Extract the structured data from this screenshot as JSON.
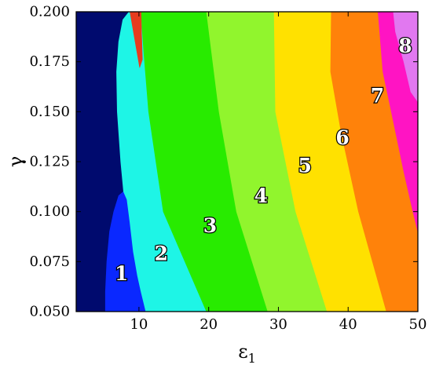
{
  "chart_data": {
    "type": "heatmap",
    "title": "",
    "xlabel": "ε",
    "xlabel_subscript": "1",
    "ylabel": "γ",
    "xlim": [
      1,
      50
    ],
    "ylim": [
      0.05,
      0.2
    ],
    "x_ticks": [
      10,
      20,
      30,
      40,
      50
    ],
    "x_tick_labels": [
      "10",
      "20",
      "30",
      "40",
      "50"
    ],
    "y_ticks": [
      0.05,
      0.075,
      0.1,
      0.125,
      0.15,
      0.175,
      0.2
    ],
    "y_tick_labels": [
      "0.050",
      "0.075",
      "0.100",
      "0.125",
      "0.150",
      "0.175",
      "0.200"
    ],
    "grid": false,
    "legend": "none",
    "background_color": "#000a6e",
    "regions": [
      {
        "label": "1",
        "color": "#0a28ff",
        "label_at": [
          7.5,
          0.069
        ],
        "boundary": [
          [
            5.2,
            0.05
          ],
          [
            5.2,
            0.06
          ],
          [
            5.4,
            0.075
          ],
          [
            5.8,
            0.09
          ],
          [
            6.4,
            0.1
          ],
          [
            7.1,
            0.108
          ],
          [
            7.8,
            0.11
          ],
          [
            8.3,
            0.106
          ],
          [
            8.7,
            0.095
          ],
          [
            9.2,
            0.08
          ],
          [
            9.8,
            0.068
          ],
          [
            10.3,
            0.06
          ],
          [
            11,
            0.05
          ]
        ]
      },
      {
        "label": "2",
        "color": "#1ef5e6",
        "label_at": [
          13.2,
          0.079
        ],
        "boundary": [
          [
            11,
            0.05
          ],
          [
            10.3,
            0.06
          ],
          [
            9.8,
            0.068
          ],
          [
            9.2,
            0.08
          ],
          [
            8.7,
            0.095
          ],
          [
            8.3,
            0.106
          ],
          [
            7.8,
            0.11
          ],
          [
            7.4,
            0.125
          ],
          [
            6.9,
            0.15
          ],
          [
            6.8,
            0.17
          ],
          [
            7.1,
            0.185
          ],
          [
            7.7,
            0.196
          ],
          [
            8.6,
            0.2
          ],
          [
            10.3,
            0.2
          ],
          [
            10.7,
            0.18
          ],
          [
            11.4,
            0.15
          ],
          [
            13.5,
            0.1
          ],
          [
            19.7,
            0.05
          ]
        ]
      },
      {
        "label": "3",
        "color": "#28eb00",
        "label_at": [
          20.2,
          0.093
        ],
        "boundary": [
          [
            19.7,
            0.05
          ],
          [
            13.5,
            0.1
          ],
          [
            11.4,
            0.15
          ],
          [
            10.7,
            0.18
          ],
          [
            10.3,
            0.2
          ],
          [
            11,
            0.2
          ],
          [
            19.7,
            0.2
          ],
          [
            21.5,
            0.15
          ],
          [
            24,
            0.1
          ],
          [
            28.5,
            0.05
          ]
        ]
      },
      {
        "label": "4",
        "color": "#91f52d",
        "label_at": [
          27.5,
          0.108
        ],
        "boundary": [
          [
            28.5,
            0.05
          ],
          [
            24,
            0.1
          ],
          [
            21.5,
            0.15
          ],
          [
            19.7,
            0.2
          ],
          [
            29.4,
            0.2
          ],
          [
            29.6,
            0.15
          ],
          [
            32.5,
            0.1
          ],
          [
            37,
            0.05
          ]
        ]
      },
      {
        "label": "5",
        "color": "#ffe100",
        "label_at": [
          33.8,
          0.123
        ],
        "boundary": [
          [
            37,
            0.05
          ],
          [
            32.5,
            0.1
          ],
          [
            29.6,
            0.15
          ],
          [
            29.4,
            0.2
          ],
          [
            37.6,
            0.2
          ],
          [
            37.5,
            0.17
          ],
          [
            39,
            0.14
          ],
          [
            41.5,
            0.1
          ],
          [
            45.5,
            0.05
          ]
        ]
      },
      {
        "label": "6",
        "color": "#ff820a",
        "label_at": [
          39.2,
          0.137
        ],
        "boundary": [
          [
            45.5,
            0.05
          ],
          [
            41.5,
            0.1
          ],
          [
            39,
            0.14
          ],
          [
            37.5,
            0.17
          ],
          [
            37.6,
            0.2
          ],
          [
            44.3,
            0.2
          ],
          [
            45,
            0.17
          ],
          [
            46.2,
            0.15
          ],
          [
            48,
            0.12
          ],
          [
            49.3,
            0.1
          ],
          [
            50,
            0.09
          ],
          [
            50,
            0.05
          ]
        ]
      },
      {
        "label": "7",
        "color": "#ff14c3",
        "label_at": [
          44.2,
          0.158
        ],
        "boundary": [
          [
            50,
            0.09
          ],
          [
            49.3,
            0.1
          ],
          [
            48,
            0.12
          ],
          [
            46.2,
            0.15
          ],
          [
            45,
            0.17
          ],
          [
            44.3,
            0.2
          ],
          [
            46.5,
            0.2
          ],
          [
            46.8,
            0.19
          ],
          [
            48,
            0.175
          ],
          [
            49,
            0.16
          ],
          [
            50,
            0.155
          ]
        ]
      },
      {
        "label": "8",
        "color": "#e178f0",
        "label_at": [
          48.2,
          0.183
        ],
        "boundary": [
          [
            50,
            0.155
          ],
          [
            49,
            0.16
          ],
          [
            48,
            0.175
          ],
          [
            46.8,
            0.19
          ],
          [
            46.5,
            0.2
          ],
          [
            50,
            0.2
          ]
        ]
      }
    ],
    "accents": [
      {
        "color": "#e63c1e",
        "boundary": [
          [
            8.7,
            0.2
          ],
          [
            9.2,
            0.19
          ],
          [
            9.7,
            0.18
          ],
          [
            10.1,
            0.172
          ],
          [
            10.5,
            0.176
          ],
          [
            10.4,
            0.188
          ],
          [
            10.3,
            0.2
          ]
        ]
      }
    ]
  }
}
